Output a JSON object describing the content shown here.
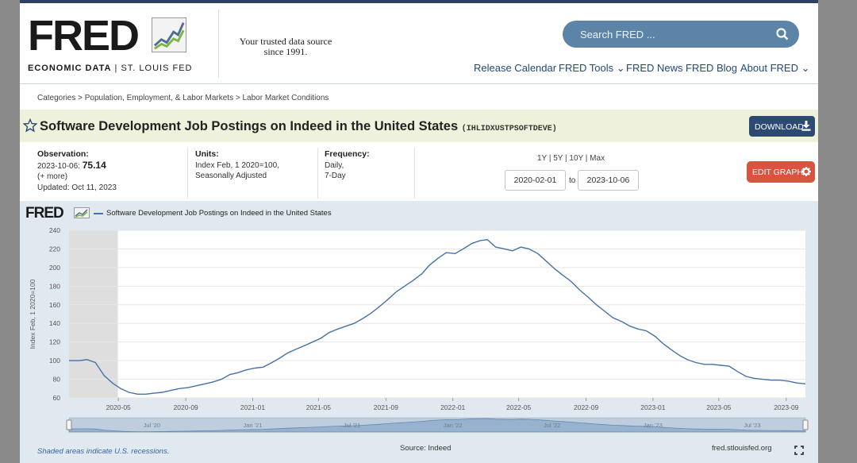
{
  "header": {
    "logo_text": "FRED",
    "logo_sub_bold": "ECONOMIC DATA",
    "logo_sub_sep": "|",
    "logo_sub_rest": "ST. LOUIS FED",
    "tagline": "Your trusted data source since 1991.",
    "search_placeholder": "Search FRED ...",
    "nav": [
      "Release Calendar",
      "FRED Tools ⌄",
      "FRED News",
      "FRED Blog",
      "About FRED ⌄"
    ]
  },
  "breadcrumb": "Categories > Population, Employment, & Labor Markets > Labor Market Conditions",
  "series": {
    "title": "Software Development Job Postings on Indeed in the United States",
    "id": "(IHLIDXUSTPSOFTDEVE)",
    "download_label": "DOWNLOAD",
    "edit_label": "EDIT GRAPH"
  },
  "meta": {
    "observation_label": "Observation:",
    "observation_date": "2023-10-06:",
    "observation_value": "75.14",
    "more": "(+ more)",
    "updated": "Updated: Oct 11, 2023",
    "units_label": "Units:",
    "units_1": "Index Feb, 1 2020=100,",
    "units_2": "Seasonally Adjusted",
    "freq_label": "Frequency:",
    "freq_1": "Daily,",
    "freq_2": "7-Day",
    "ranges": "1Y | 5Y | 10Y | Max",
    "date_from": "2020-02-01",
    "date_to": "2023-10-06",
    "to_label": "to"
  },
  "chart_footer": {
    "recession_note": "Shaded areas indicate U.S. recessions.",
    "source": "Source: Indeed",
    "site": "fred.stlouisfed.org",
    "mini_logo": "FRED"
  },
  "colors": {
    "line": "#4572a7",
    "recession": "#dedede",
    "panel": "#e1e9f0",
    "download": "#2c4a73",
    "edit": "#d9533e"
  },
  "chart_data": {
    "type": "line",
    "title": "Software Development Job Postings on Indeed in the United States",
    "ylabel": "Index Feb, 1 2020=100",
    "ylim": [
      60,
      240
    ],
    "yticks": [
      60,
      80,
      100,
      120,
      140,
      160,
      180,
      200,
      220,
      240
    ],
    "xlim": [
      "2020-02-01",
      "2023-10-06"
    ],
    "xticks": [
      "2020-05",
      "2020-09",
      "2021-01",
      "2021-05",
      "2021-09",
      "2022-01",
      "2022-05",
      "2022-09",
      "2023-01",
      "2023-05",
      "2023-09"
    ],
    "grid": true,
    "legend": "top-left",
    "recession": [
      "2020-02-01",
      "2020-04-30"
    ],
    "navigator_labels": [
      "Jul '20",
      "Jan '21",
      "Jul '21",
      "Jan '22",
      "Jul '22",
      "Jan '23",
      "Jul '23"
    ],
    "series": [
      {
        "name": "Software Development Job Postings on Indeed in the United States",
        "points": [
          [
            "2020-02-01",
            100
          ],
          [
            "2020-02-20",
            100
          ],
          [
            "2020-03-05",
            101
          ],
          [
            "2020-03-20",
            98
          ],
          [
            "2020-04-05",
            84
          ],
          [
            "2020-04-20",
            76
          ],
          [
            "2020-05-05",
            70
          ],
          [
            "2020-05-20",
            66
          ],
          [
            "2020-06-05",
            64
          ],
          [
            "2020-06-20",
            64
          ],
          [
            "2020-07-05",
            65
          ],
          [
            "2020-07-20",
            66
          ],
          [
            "2020-08-05",
            68
          ],
          [
            "2020-08-20",
            70
          ],
          [
            "2020-09-05",
            71
          ],
          [
            "2020-09-20",
            73
          ],
          [
            "2020-10-05",
            75
          ],
          [
            "2020-10-20",
            77
          ],
          [
            "2020-11-05",
            80
          ],
          [
            "2020-11-20",
            85
          ],
          [
            "2020-12-05",
            87
          ],
          [
            "2020-12-20",
            90
          ],
          [
            "2021-01-05",
            92
          ],
          [
            "2021-01-20",
            93
          ],
          [
            "2021-02-05",
            98
          ],
          [
            "2021-02-20",
            103
          ],
          [
            "2021-03-05",
            108
          ],
          [
            "2021-03-20",
            112
          ],
          [
            "2021-04-05",
            116
          ],
          [
            "2021-04-20",
            120
          ],
          [
            "2021-05-05",
            124
          ],
          [
            "2021-05-20",
            130
          ],
          [
            "2021-06-05",
            134
          ],
          [
            "2021-06-20",
            137
          ],
          [
            "2021-07-05",
            140
          ],
          [
            "2021-07-20",
            145
          ],
          [
            "2021-08-05",
            151
          ],
          [
            "2021-08-20",
            158
          ],
          [
            "2021-09-05",
            166
          ],
          [
            "2021-09-20",
            174
          ],
          [
            "2021-10-05",
            180
          ],
          [
            "2021-10-20",
            186
          ],
          [
            "2021-11-05",
            193
          ],
          [
            "2021-11-20",
            203
          ],
          [
            "2021-12-05",
            210
          ],
          [
            "2021-12-20",
            216
          ],
          [
            "2022-01-05",
            215
          ],
          [
            "2022-01-20",
            220
          ],
          [
            "2022-02-05",
            226
          ],
          [
            "2022-02-20",
            229
          ],
          [
            "2022-03-05",
            230
          ],
          [
            "2022-03-20",
            222
          ],
          [
            "2022-04-05",
            220
          ],
          [
            "2022-04-20",
            218
          ],
          [
            "2022-05-05",
            222
          ],
          [
            "2022-05-20",
            220
          ],
          [
            "2022-06-05",
            215
          ],
          [
            "2022-06-20",
            207
          ],
          [
            "2022-07-05",
            199
          ],
          [
            "2022-07-20",
            192
          ],
          [
            "2022-08-05",
            185
          ],
          [
            "2022-08-20",
            176
          ],
          [
            "2022-09-05",
            168
          ],
          [
            "2022-09-20",
            160
          ],
          [
            "2022-10-05",
            153
          ],
          [
            "2022-10-20",
            146
          ],
          [
            "2022-11-05",
            142
          ],
          [
            "2022-11-20",
            137
          ],
          [
            "2022-12-05",
            134
          ],
          [
            "2022-12-20",
            132
          ],
          [
            "2023-01-05",
            126
          ],
          [
            "2023-01-20",
            118
          ],
          [
            "2023-02-05",
            111
          ],
          [
            "2023-02-20",
            105
          ],
          [
            "2023-03-05",
            101
          ],
          [
            "2023-03-20",
            98
          ],
          [
            "2023-04-05",
            96
          ],
          [
            "2023-04-20",
            96
          ],
          [
            "2023-05-05",
            95
          ],
          [
            "2023-05-20",
            94
          ],
          [
            "2023-06-05",
            88
          ],
          [
            "2023-06-20",
            83
          ],
          [
            "2023-07-05",
            81
          ],
          [
            "2023-07-20",
            80
          ],
          [
            "2023-08-05",
            79
          ],
          [
            "2023-08-20",
            79
          ],
          [
            "2023-09-05",
            78
          ],
          [
            "2023-09-20",
            76
          ],
          [
            "2023-10-06",
            75.14
          ]
        ]
      }
    ]
  }
}
